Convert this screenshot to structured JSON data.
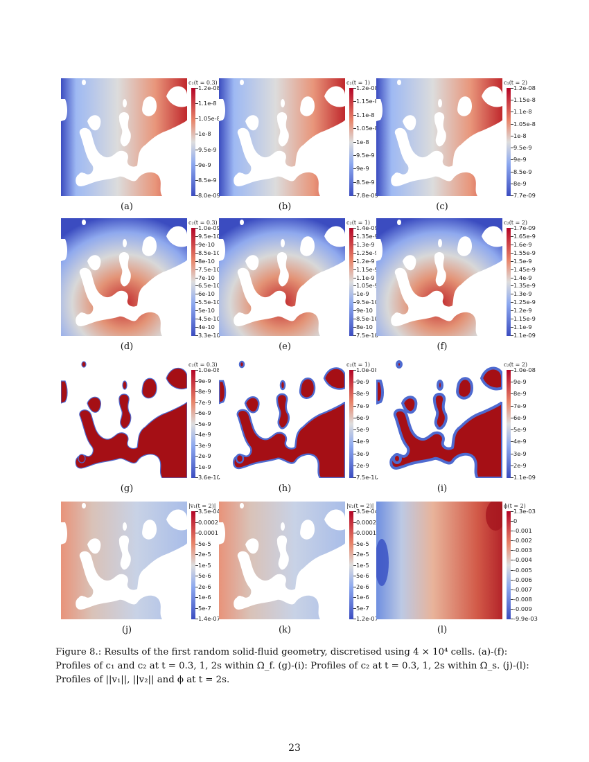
{
  "panels": [
    {
      "id": "a",
      "label": "(a)",
      "title": "c₁(t = 0.3)",
      "ticks": [
        "1.2e-08",
        "1.1e-8",
        "1.05e-8",
        "1e-8",
        "9.5e-9",
        "9e-9",
        "8.5e-9",
        "8.0e-09"
      ],
      "scheme": "c1"
    },
    {
      "id": "b",
      "label": "(b)",
      "title": "c₁(t = 1)",
      "ticks": [
        "1.2e-08",
        "1.15e-8",
        "1.1e-8",
        "1.05e-8",
        "1e-8",
        "9.5e-9",
        "9e-9",
        "8.5e-9",
        "7.8e-09"
      ],
      "scheme": "c1"
    },
    {
      "id": "c",
      "label": "(c)",
      "title": "c₁(t = 2)",
      "ticks": [
        "1.2e-08",
        "1.15e-8",
        "1.1e-8",
        "1.05e-8",
        "1e-8",
        "9.5e-9",
        "9e-9",
        "8.5e-9",
        "8e-9",
        "7.7e-09"
      ],
      "scheme": "c1"
    },
    {
      "id": "d",
      "label": "(d)",
      "title": "c₂(t = 0.3)",
      "ticks": [
        "1.0e-09",
        "9.5e-10",
        "9e-10",
        "8.5e-10",
        "8e-10",
        "7.5e-10",
        "7e-10",
        "6.5e-10",
        "6e-10",
        "5.5e-10",
        "5e-10",
        "4.5e-10",
        "4e-10",
        "3.3e-10"
      ],
      "scheme": "c2"
    },
    {
      "id": "e",
      "label": "(e)",
      "title": "c₂(t = 1)",
      "ticks": [
        "1.4e-09",
        "1.35e-9",
        "1.3e-9",
        "1.25e-9",
        "1.2e-9",
        "1.15e-9",
        "1.1e-9",
        "1.05e-9",
        "1e-9",
        "9.5e-10",
        "9e-10",
        "8.5e-10",
        "8e-10",
        "7.5e-10"
      ],
      "scheme": "c2"
    },
    {
      "id": "f",
      "label": "(f)",
      "title": "c₂(t = 2)",
      "ticks": [
        "1.7e-09",
        "1.65e-9",
        "1.6e-9",
        "1.55e-9",
        "1.5e-9",
        "1.45e-9",
        "1.4e-9",
        "1.35e-9",
        "1.3e-9",
        "1.25e-9",
        "1.2e-9",
        "1.15e-9",
        "1.1e-9",
        "1.1e-09"
      ],
      "scheme": "c2"
    },
    {
      "id": "g",
      "label": "(g)",
      "title": "c₂(t = 0.3)",
      "ticks": [
        "1.0e-08",
        "9e-9",
        "8e-9",
        "7e-9",
        "6e-9",
        "5e-9",
        "4e-9",
        "3e-9",
        "2e-9",
        "1e-9",
        "3.6e-10"
      ],
      "scheme": "solid"
    },
    {
      "id": "h",
      "label": "(h)",
      "title": "c₂(t = 1)",
      "ticks": [
        "1.0e-08",
        "9e-9",
        "8e-9",
        "7e-9",
        "6e-9",
        "5e-9",
        "4e-9",
        "3e-9",
        "2e-9",
        "7.5e-10"
      ],
      "scheme": "solid"
    },
    {
      "id": "i",
      "label": "(i)",
      "title": "c₂(t = 2)",
      "ticks": [
        "1.0e-08",
        "9e-9",
        "8e-9",
        "7e-9",
        "6e-9",
        "5e-9",
        "4e-9",
        "3e-9",
        "2e-9",
        "1.1e-09"
      ],
      "scheme": "solid"
    },
    {
      "id": "j",
      "label": "(j)",
      "title": "|v₁(t = 2)|",
      "ticks": [
        "3.5e-04",
        "0.0002",
        "0.0001",
        "5e-5",
        "2e-5",
        "1e-5",
        "5e-6",
        "2e-6",
        "1e-6",
        "5e-7",
        "1.4e-07"
      ],
      "scheme": "vel"
    },
    {
      "id": "k",
      "label": "(k)",
      "title": "|v₂(t = 2)|",
      "ticks": [
        "3.5e-04",
        "0.0002",
        "0.0001",
        "5e-5",
        "2e-5",
        "1e-5",
        "5e-6",
        "2e-6",
        "1e-6",
        "5e-7",
        "1.2e-07"
      ],
      "scheme": "vel"
    },
    {
      "id": "l",
      "label": "(l)",
      "title": "ϕ(t = 2)",
      "ticks": [
        "1.3e-03",
        "0",
        "-0.001",
        "-0.002",
        "-0.003",
        "-0.004",
        "-0.005",
        "-0.006",
        "-0.007",
        "-0.008",
        "-0.009",
        "-9.9e-03"
      ],
      "scheme": "phi"
    }
  ],
  "caption": {
    "lead": "Figure 8.:",
    "text": "Results of the first random solid-fluid geometry, discretised using 4 × 10⁴ cells. (a)-(f): Profiles of c₁ and c₂ at t = 0.3, 1, 2s within Ω_f. (g)-(i): Profiles of c₂ at t = 0.3, 1, 2s within Ω_s. (j)-(l): Profiles of ||v₁||, ||v₂|| and ϕ at t = 2s."
  },
  "page_number": "23",
  "colors": {
    "blue": "#3b4cc0",
    "grey": "#dddddd",
    "red": "#b40426"
  }
}
